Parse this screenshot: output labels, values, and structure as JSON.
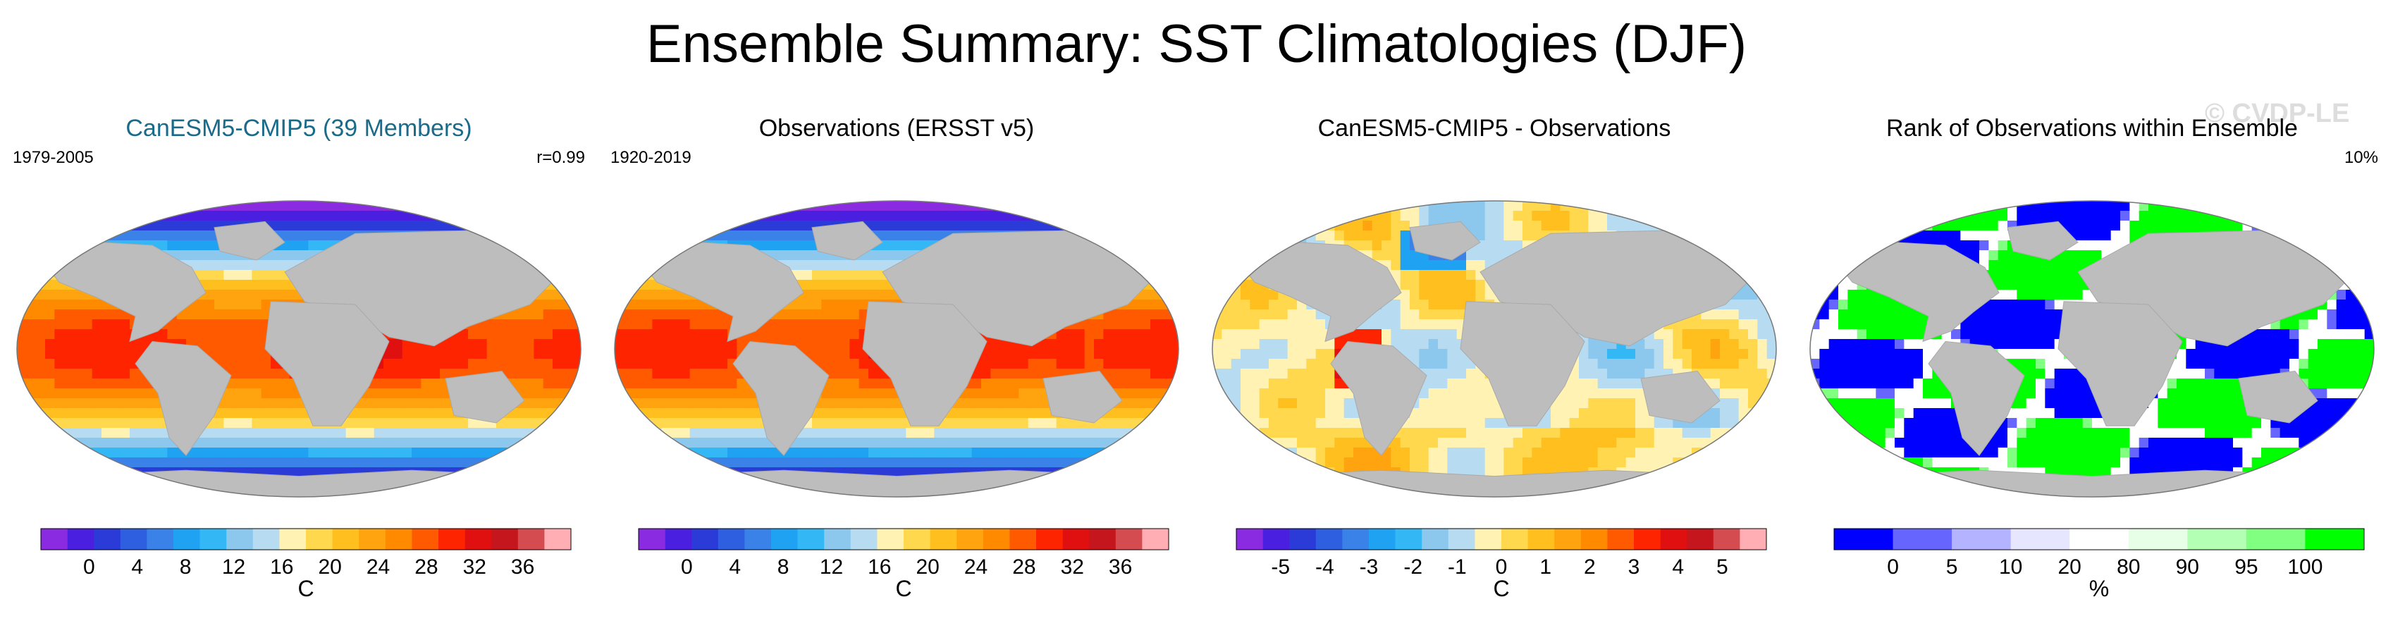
{
  "title": "Ensemble Summary: SST Climatologies (DJF)",
  "watermark": "© CVDP-LE",
  "colors": {
    "land": "#bdbdbd",
    "ocean_missing": "#ffffff",
    "outline": "#777777"
  },
  "icons": {
    "map_projection": "robinson-world-map"
  },
  "chart_data": [
    {
      "type": "heatmap",
      "title": "CanESM5-CMIP5 (39 Members)",
      "left_label": "1979-2005",
      "right_label": "r=0.99",
      "field": "sst",
      "colorbar": {
        "colors": [
          "#8a2be2",
          "#4b1fe0",
          "#2a3bd8",
          "#2e5fe0",
          "#3b82e8",
          "#1fa2f2",
          "#33b8f5",
          "#8cc8ee",
          "#b7dcf2",
          "#fff2b3",
          "#ffd84d",
          "#ffbf1f",
          "#ffa40f",
          "#ff8a00",
          "#ff5a00",
          "#ff2400",
          "#e01010",
          "#c4161c",
          "#d44b50",
          "#ffaeb3"
        ],
        "ticks": [
          "0",
          "4",
          "8",
          "12",
          "16",
          "20",
          "24",
          "28",
          "32",
          "36"
        ],
        "unit": "C"
      }
    },
    {
      "type": "heatmap",
      "title": "Observations (ERSST v5)",
      "left_label": "1920-2019",
      "right_label": "",
      "field": "sst",
      "colorbar": {
        "colors": [
          "#8a2be2",
          "#4b1fe0",
          "#2a3bd8",
          "#2e5fe0",
          "#3b82e8",
          "#1fa2f2",
          "#33b8f5",
          "#8cc8ee",
          "#b7dcf2",
          "#fff2b3",
          "#ffd84d",
          "#ffbf1f",
          "#ffa40f",
          "#ff8a00",
          "#ff5a00",
          "#ff2400",
          "#e01010",
          "#c4161c",
          "#d44b50",
          "#ffaeb3"
        ],
        "ticks": [
          "0",
          "4",
          "8",
          "12",
          "16",
          "20",
          "24",
          "28",
          "32",
          "36"
        ],
        "unit": "C"
      }
    },
    {
      "type": "heatmap",
      "title": "CanESM5-CMIP5 - Observations",
      "left_label": "",
      "right_label": "",
      "field": "diff",
      "colorbar": {
        "colors": [
          "#8a2be2",
          "#4b1fe0",
          "#2a3bd8",
          "#2e5fe0",
          "#3b82e8",
          "#1fa2f2",
          "#33b8f5",
          "#8cc8ee",
          "#b7dcf2",
          "#fff2b3",
          "#ffd84d",
          "#ffbf1f",
          "#ffa40f",
          "#ff8a00",
          "#ff5a00",
          "#ff2400",
          "#e01010",
          "#c4161c",
          "#d44b50",
          "#ffaeb3"
        ],
        "ticks": [
          "-5",
          "-4",
          "-3",
          "-2",
          "-1",
          "0",
          "1",
          "2",
          "3",
          "4",
          "5"
        ],
        "unit": "C"
      }
    },
    {
      "type": "heatmap",
      "title": "Rank of Observations within Ensemble",
      "left_label": "",
      "right_label": "10%",
      "field": "rank",
      "colorbar": {
        "colors": [
          "#0000ff",
          "#6666ff",
          "#b3b3ff",
          "#e6e6ff",
          "#ffffff",
          "#e6ffe6",
          "#b3ffb3",
          "#80ff80",
          "#00ff00"
        ],
        "ticks": [
          "0",
          "5",
          "10",
          "20",
          "80",
          "90",
          "95",
          "100"
        ],
        "unit": "%"
      }
    }
  ]
}
